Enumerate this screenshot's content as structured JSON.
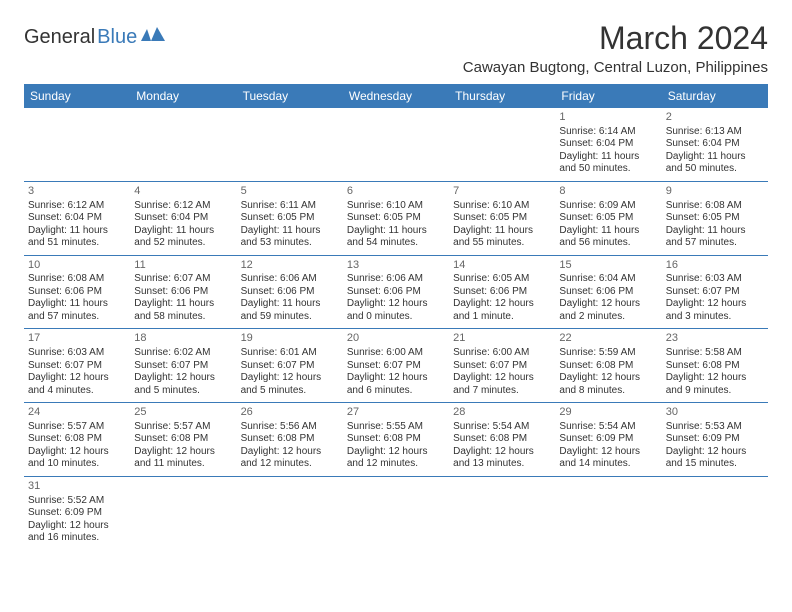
{
  "logo": {
    "text1": "General",
    "text2": "Blue"
  },
  "title": "March 2024",
  "location": "Cawayan Bugtong, Central Luzon, Philippines",
  "colors": {
    "header_bg": "#3a7ab8",
    "header_text": "#ffffff",
    "body_text": "#333333",
    "daynum": "#666666",
    "border": "#3a7ab8",
    "logo_blue": "#3a7ab8"
  },
  "fonts": {
    "title_size": 32,
    "location_size": 15,
    "dayheader_size": 12,
    "cell_size": 10,
    "daynum_size": 11,
    "logo_size": 20
  },
  "layout": {
    "cols": 7,
    "cell_min_height": 64
  },
  "day_names": [
    "Sunday",
    "Monday",
    "Tuesday",
    "Wednesday",
    "Thursday",
    "Friday",
    "Saturday"
  ],
  "weeks": [
    [
      null,
      null,
      null,
      null,
      null,
      {
        "n": "1",
        "sunrise": "Sunrise: 6:14 AM",
        "sunset": "Sunset: 6:04 PM",
        "daylight": "Daylight: 11 hours and 50 minutes."
      },
      {
        "n": "2",
        "sunrise": "Sunrise: 6:13 AM",
        "sunset": "Sunset: 6:04 PM",
        "daylight": "Daylight: 11 hours and 50 minutes."
      }
    ],
    [
      {
        "n": "3",
        "sunrise": "Sunrise: 6:12 AM",
        "sunset": "Sunset: 6:04 PM",
        "daylight": "Daylight: 11 hours and 51 minutes."
      },
      {
        "n": "4",
        "sunrise": "Sunrise: 6:12 AM",
        "sunset": "Sunset: 6:04 PM",
        "daylight": "Daylight: 11 hours and 52 minutes."
      },
      {
        "n": "5",
        "sunrise": "Sunrise: 6:11 AM",
        "sunset": "Sunset: 6:05 PM",
        "daylight": "Daylight: 11 hours and 53 minutes."
      },
      {
        "n": "6",
        "sunrise": "Sunrise: 6:10 AM",
        "sunset": "Sunset: 6:05 PM",
        "daylight": "Daylight: 11 hours and 54 minutes."
      },
      {
        "n": "7",
        "sunrise": "Sunrise: 6:10 AM",
        "sunset": "Sunset: 6:05 PM",
        "daylight": "Daylight: 11 hours and 55 minutes."
      },
      {
        "n": "8",
        "sunrise": "Sunrise: 6:09 AM",
        "sunset": "Sunset: 6:05 PM",
        "daylight": "Daylight: 11 hours and 56 minutes."
      },
      {
        "n": "9",
        "sunrise": "Sunrise: 6:08 AM",
        "sunset": "Sunset: 6:05 PM",
        "daylight": "Daylight: 11 hours and 57 minutes."
      }
    ],
    [
      {
        "n": "10",
        "sunrise": "Sunrise: 6:08 AM",
        "sunset": "Sunset: 6:06 PM",
        "daylight": "Daylight: 11 hours and 57 minutes."
      },
      {
        "n": "11",
        "sunrise": "Sunrise: 6:07 AM",
        "sunset": "Sunset: 6:06 PM",
        "daylight": "Daylight: 11 hours and 58 minutes."
      },
      {
        "n": "12",
        "sunrise": "Sunrise: 6:06 AM",
        "sunset": "Sunset: 6:06 PM",
        "daylight": "Daylight: 11 hours and 59 minutes."
      },
      {
        "n": "13",
        "sunrise": "Sunrise: 6:06 AM",
        "sunset": "Sunset: 6:06 PM",
        "daylight": "Daylight: 12 hours and 0 minutes."
      },
      {
        "n": "14",
        "sunrise": "Sunrise: 6:05 AM",
        "sunset": "Sunset: 6:06 PM",
        "daylight": "Daylight: 12 hours and 1 minute."
      },
      {
        "n": "15",
        "sunrise": "Sunrise: 6:04 AM",
        "sunset": "Sunset: 6:06 PM",
        "daylight": "Daylight: 12 hours and 2 minutes."
      },
      {
        "n": "16",
        "sunrise": "Sunrise: 6:03 AM",
        "sunset": "Sunset: 6:07 PM",
        "daylight": "Daylight: 12 hours and 3 minutes."
      }
    ],
    [
      {
        "n": "17",
        "sunrise": "Sunrise: 6:03 AM",
        "sunset": "Sunset: 6:07 PM",
        "daylight": "Daylight: 12 hours and 4 minutes."
      },
      {
        "n": "18",
        "sunrise": "Sunrise: 6:02 AM",
        "sunset": "Sunset: 6:07 PM",
        "daylight": "Daylight: 12 hours and 5 minutes."
      },
      {
        "n": "19",
        "sunrise": "Sunrise: 6:01 AM",
        "sunset": "Sunset: 6:07 PM",
        "daylight": "Daylight: 12 hours and 5 minutes."
      },
      {
        "n": "20",
        "sunrise": "Sunrise: 6:00 AM",
        "sunset": "Sunset: 6:07 PM",
        "daylight": "Daylight: 12 hours and 6 minutes."
      },
      {
        "n": "21",
        "sunrise": "Sunrise: 6:00 AM",
        "sunset": "Sunset: 6:07 PM",
        "daylight": "Daylight: 12 hours and 7 minutes."
      },
      {
        "n": "22",
        "sunrise": "Sunrise: 5:59 AM",
        "sunset": "Sunset: 6:08 PM",
        "daylight": "Daylight: 12 hours and 8 minutes."
      },
      {
        "n": "23",
        "sunrise": "Sunrise: 5:58 AM",
        "sunset": "Sunset: 6:08 PM",
        "daylight": "Daylight: 12 hours and 9 minutes."
      }
    ],
    [
      {
        "n": "24",
        "sunrise": "Sunrise: 5:57 AM",
        "sunset": "Sunset: 6:08 PM",
        "daylight": "Daylight: 12 hours and 10 minutes."
      },
      {
        "n": "25",
        "sunrise": "Sunrise: 5:57 AM",
        "sunset": "Sunset: 6:08 PM",
        "daylight": "Daylight: 12 hours and 11 minutes."
      },
      {
        "n": "26",
        "sunrise": "Sunrise: 5:56 AM",
        "sunset": "Sunset: 6:08 PM",
        "daylight": "Daylight: 12 hours and 12 minutes."
      },
      {
        "n": "27",
        "sunrise": "Sunrise: 5:55 AM",
        "sunset": "Sunset: 6:08 PM",
        "daylight": "Daylight: 12 hours and 12 minutes."
      },
      {
        "n": "28",
        "sunrise": "Sunrise: 5:54 AM",
        "sunset": "Sunset: 6:08 PM",
        "daylight": "Daylight: 12 hours and 13 minutes."
      },
      {
        "n": "29",
        "sunrise": "Sunrise: 5:54 AM",
        "sunset": "Sunset: 6:09 PM",
        "daylight": "Daylight: 12 hours and 14 minutes."
      },
      {
        "n": "30",
        "sunrise": "Sunrise: 5:53 AM",
        "sunset": "Sunset: 6:09 PM",
        "daylight": "Daylight: 12 hours and 15 minutes."
      }
    ],
    [
      {
        "n": "31",
        "sunrise": "Sunrise: 5:52 AM",
        "sunset": "Sunset: 6:09 PM",
        "daylight": "Daylight: 12 hours and 16 minutes."
      },
      null,
      null,
      null,
      null,
      null,
      null
    ]
  ]
}
